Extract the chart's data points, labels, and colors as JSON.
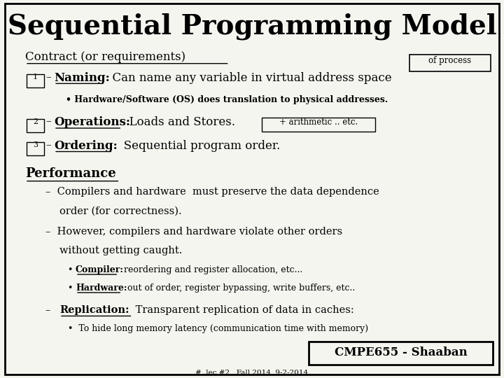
{
  "title": "Sequential Programming Model",
  "bg_color": "#f5f5f0",
  "border_color": "#000000",
  "text_color": "#000000",
  "title_fontsize": 28,
  "contract_label": "Contract (or requirements)",
  "of_process_label": "of process",
  "item1_num": "1",
  "item1_bold": "Naming:",
  "item1_rest": "  Can name any variable in virtual address space",
  "item1_sub": "Hardware/Software (OS) does translation to physical addresses.",
  "item2_num": "2",
  "item2_bold": "Operations:",
  "item2_rest": "  Loads and Stores.",
  "item2_box": "+ arithmetic .. etc.",
  "item3_num": "3",
  "item3_bold": "Ordering:",
  "item3_rest": "   Sequential program order.",
  "perf_label": "Performance",
  "perf1a": "Compilers and hardware  must preserve the data dependence",
  "perf1b": "order (for correctness).",
  "perf2a": "However, compilers and hardware violate other orders",
  "perf2b": "without getting caught.",
  "perf2_sub1_bold": "Compiler:",
  "perf2_sub1_rest": "  reordering and register allocation, etc...",
  "perf2_sub2_bold": "Hardware:",
  "perf2_sub2_rest": "  out of order, register bypassing, write buffers, etc..",
  "perf3_bold": "Replication:",
  "perf3_rest": " Transparent replication of data in caches:",
  "perf3_sub": "To hide long memory latency (communication time with memory)",
  "footer_box": "CMPE655 - Shaaban",
  "footer_small": "#  lec #2   Fall 2014  9-2-2014"
}
